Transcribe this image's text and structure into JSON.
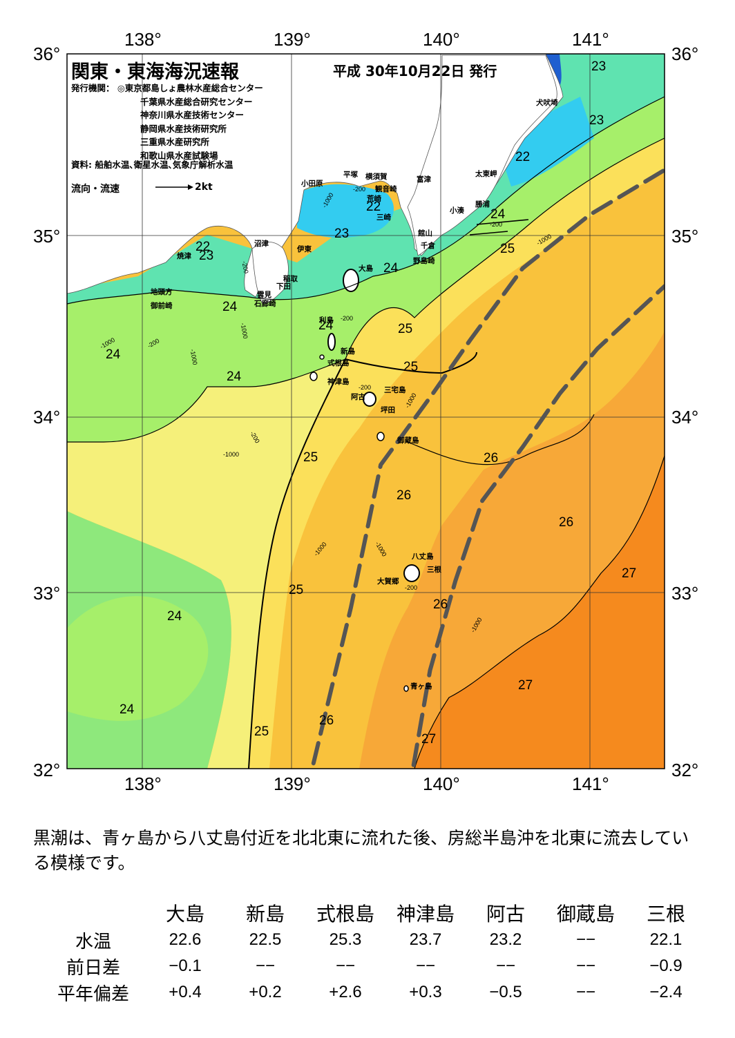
{
  "header": {
    "title": "関東・東海海況速報",
    "date": "平成 30年10月22日 発行",
    "issuer_label": "発行機関：",
    "issuers": [
      "◎東京都島しょ農林水産総合センター",
      "千葉県水産総合研究センター",
      "神奈川県水産技術センター",
      "静岡県水産技術研究所",
      "三重県水産研究所",
      "和歌山県水産試験場"
    ],
    "source": "資料: 船舶水温､衛星水温､気象庁解析水温",
    "flow_label": "流向・流速",
    "flow_scale": "2kt"
  },
  "axes": {
    "lon_labels": [
      "138°",
      "139°",
      "140°",
      "141°"
    ],
    "lat_labels": [
      "36°",
      "35°",
      "34°",
      "33°",
      "32°"
    ],
    "lon_range": [
      137.5,
      141.5
    ],
    "lat_range": [
      32,
      36
    ]
  },
  "isotherm_labels": [
    "23",
    "23",
    "22",
    "22",
    "24",
    "22",
    "23",
    "23",
    "24",
    "24",
    "25",
    "24",
    "24",
    "25",
    "24",
    "25",
    "26",
    "25",
    "26",
    "26",
    "27",
    "24",
    "25",
    "26",
    "27",
    "24",
    "25",
    "26",
    "27"
  ],
  "depth_labels": [
    "-1000",
    "-200",
    "-1000",
    "-200",
    "-1000",
    "-200",
    "-1000",
    "-200",
    "-1000",
    "-200",
    "-1000",
    "-1000",
    "-1000",
    "-200",
    "-1000",
    "-1000",
    "-200",
    "-200"
  ],
  "place_names": [
    "犬吠埼",
    "太東岬",
    "勝浦",
    "小湊",
    "館山",
    "千倉",
    "野島崎",
    "富津",
    "観音崎",
    "横須賀",
    "平塚",
    "小田原",
    "荒崎",
    "三崎",
    "沼津",
    "伊東",
    "焼津",
    "稲取",
    "下田",
    "雲見",
    "石廊崎",
    "地頭方",
    "御前崎",
    "大島",
    "利島",
    "新島",
    "式根島",
    "神津島",
    "三宅島",
    "阿古",
    "坪田",
    "御蔵島",
    "八丈島",
    "三根",
    "大賀郷",
    "青ヶ島"
  ],
  "kuroshio_axis": {
    "west_edge": [
      [
        139.15,
        32.03
      ],
      [
        139.4,
        32.9
      ],
      [
        139.6,
        33.7
      ],
      [
        139.95,
        34.1
      ],
      [
        140.2,
        34.4
      ],
      [
        140.55,
        34.8
      ],
      [
        141.0,
        35.1
      ],
      [
        141.5,
        35.35
      ]
    ],
    "east_edge": [
      [
        139.82,
        32.02
      ],
      [
        139.93,
        32.55
      ],
      [
        140.1,
        33.05
      ],
      [
        140.28,
        33.5
      ],
      [
        140.55,
        33.8
      ],
      [
        140.8,
        34.1
      ],
      [
        141.05,
        34.35
      ],
      [
        141.5,
        34.7
      ]
    ]
  },
  "colors": {
    "t22": "#33ccf0",
    "t23": "#5fe3b0",
    "t24": "#8ee87c",
    "t24b": "#a6ef6a",
    "t25": "#f5f07a",
    "t25b": "#fbe05a",
    "t26": "#f9c23c",
    "t26b": "#f7a838",
    "t27": "#f58a1e",
    "land": "#ffffff",
    "kuroshio": "#555555"
  },
  "summary": "黒潮は、青ヶ島から八丈島付近を北北東に流れた後、房総半島沖を北東に流去している模様です。",
  "table": {
    "headers": [
      "大島",
      "新島",
      "式根島",
      "神津島",
      "阿古",
      "御蔵島",
      "三根"
    ],
    "rows": [
      {
        "label": "水温",
        "values": [
          "22.6",
          "22.5",
          "25.3",
          "23.7",
          "23.2",
          "−−",
          "22.1"
        ]
      },
      {
        "label": "前日差",
        "values": [
          "−0.1",
          "−−",
          "−−",
          "−−",
          "−−",
          "−−",
          "−0.9"
        ]
      },
      {
        "label": "平年偏差",
        "values": [
          "+0.4",
          "+0.2",
          "+2.6",
          "+0.3",
          "−0.5",
          "−−",
          "−2.4"
        ]
      }
    ]
  }
}
